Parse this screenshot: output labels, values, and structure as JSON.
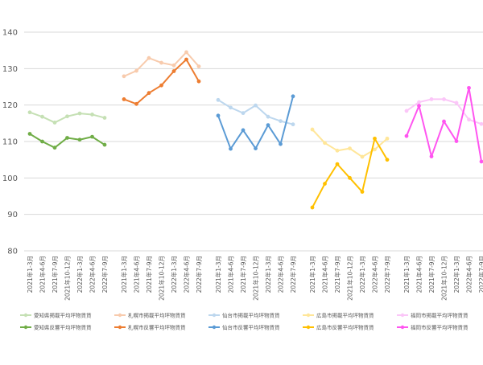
{
  "chart_data": {
    "type": "line",
    "y_axis": {
      "min": 80,
      "max": 140,
      "step": 10,
      "ticks": [
        "80",
        "90",
        "100",
        "110",
        "120",
        "130",
        "140"
      ],
      "grid": true
    },
    "categories": [
      "2021年1-3月",
      "2021年4-6月",
      "2021年7-9月",
      "2021年10-12月",
      "2022年1-3月",
      "2022年4-6月",
      "2022年7-9月"
    ],
    "panels": [
      {
        "series": [
          {
            "name": "愛知県掲載平均坪物賃賃",
            "color": "#c5e0b4",
            "values": [
              118.0,
              116.8,
              115.2,
              116.9,
              117.7,
              117.4,
              116.5
            ]
          },
          {
            "name": "愛知県反響平均坪物賃賃",
            "color": "#70ad47",
            "values": [
              112.1,
              110.0,
              108.3,
              111.0,
              110.5,
              111.3,
              109.1
            ]
          }
        ]
      },
      {
        "series": [
          {
            "name": "札幌市掲載平均坪物賃賃",
            "color": "#f8cbad",
            "values": [
              127.9,
              129.4,
              132.9,
              131.6,
              130.9,
              134.5,
              130.6
            ]
          },
          {
            "name": "札幌市反響平均坪物賃賃",
            "color": "#ed7d31",
            "values": [
              121.6,
              120.3,
              123.3,
              125.4,
              129.3,
              132.5,
              126.5
            ]
          }
        ]
      },
      {
        "series": [
          {
            "name": "仙台市掲載平均坪物賃賃",
            "color": "#bdd7ee",
            "values": [
              121.4,
              119.3,
              117.8,
              119.9,
              116.8,
              115.6,
              114.7
            ]
          },
          {
            "name": "仙台市反響平均坪物賃賃",
            "color": "#5b9bd5",
            "values": [
              117.1,
              108.0,
              113.1,
              108.1,
              114.5,
              109.3,
              122.4
            ]
          }
        ]
      },
      {
        "series": [
          {
            "name": "広島市掲載平均坪物賃賃",
            "color": "#ffe699",
            "values": [
              113.3,
              109.6,
              107.5,
              108.1,
              105.8,
              107.8,
              110.8
            ]
          },
          {
            "name": "広島市反響平均坪物賃賃",
            "color": "#ffc000",
            "values": [
              91.9,
              98.4,
              103.8,
              100.0,
              96.2,
              110.8,
              105.0
            ]
          }
        ]
      },
      {
        "series": [
          {
            "name": "福岡市掲載平均坪物賃賃",
            "color": "#fbc6f8",
            "values": [
              118.4,
              120.8,
              121.6,
              121.6,
              120.6,
              116.0,
              114.8
            ]
          },
          {
            "name": "福岡市反響平均坪物賃賃",
            "color": "#ff55f0",
            "values": [
              111.5,
              119.8,
              105.9,
              115.5,
              110.1,
              124.7,
              104.5
            ]
          }
        ]
      }
    ]
  }
}
